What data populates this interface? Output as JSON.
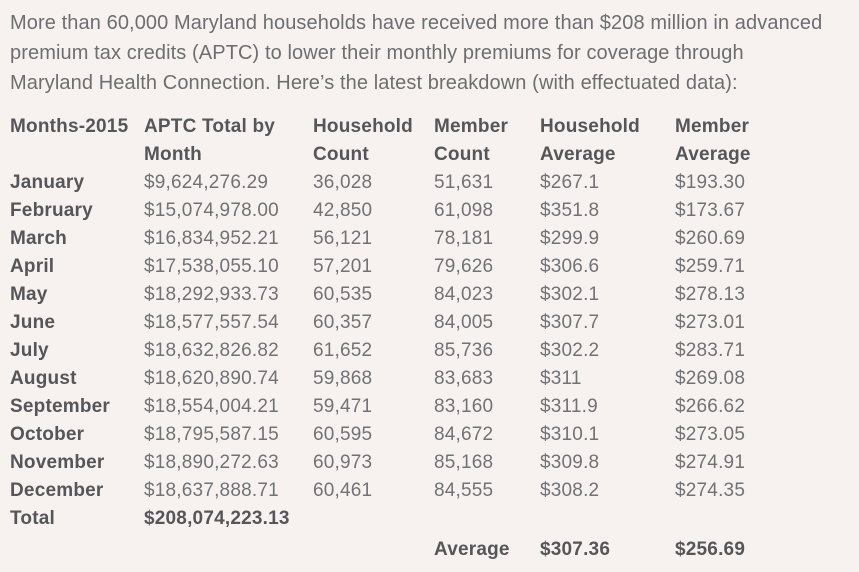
{
  "colors": {
    "background": "#f7f2f0",
    "heading_text": "#55565a",
    "body_text": "#6d6e70",
    "value_text": "#717276"
  },
  "intro": {
    "text": "More than 60,000 Maryland households have received more than $208 million in advanced\npremium tax credits (APTC) to lower their monthly premiums for coverage through\nMaryland Health Connection. Here’s the latest breakdown (with effectuated data):"
  },
  "table": {
    "headers": [
      "Months-2015",
      "APTC Total by Month",
      "Household Count",
      "Member Count",
      "Household Average",
      "Member Average"
    ],
    "rows": [
      [
        "January",
        "$9,624,276.29",
        "36,028",
        "51,631",
        "$267.1",
        "$193.30"
      ],
      [
        "February",
        "$15,074,978.00",
        "42,850",
        "61,098",
        "$351.8",
        "$173.67"
      ],
      [
        "March",
        "$16,834,952.21",
        "56,121",
        "78,181",
        "$299.9",
        "$260.69"
      ],
      [
        "April",
        "$17,538,055.10",
        "57,201",
        "79,626",
        "$306.6",
        "$259.71"
      ],
      [
        "May",
        "$18,292,933.73",
        "60,535",
        "84,023",
        "$302.1",
        "$278.13"
      ],
      [
        "June",
        "$18,577,557.54",
        "60,357",
        "84,005",
        "$307.7",
        "$273.01"
      ],
      [
        "July",
        "$18,632,826.82",
        "61,652",
        "85,736",
        "$302.2",
        "$283.71"
      ],
      [
        "August",
        "$18,620,890.74",
        "59,868",
        "83,683",
        "$311",
        "$269.08"
      ],
      [
        "September",
        "$18,554,004.21",
        "59,471",
        "83,160",
        "$311.9",
        "$266.62"
      ],
      [
        "October",
        "$18,795,587.15",
        "60,595",
        "84,672",
        "$310.1",
        "$273.05"
      ],
      [
        "November",
        "$18,890,272.63",
        "60,973",
        "85,168",
        "$309.8",
        "$274.91"
      ],
      [
        "December",
        "$18,637,888.71",
        "60,461",
        "84,555",
        "$308.2",
        "$274.35"
      ]
    ],
    "total_row": [
      "Total",
      "$208,074,223.13",
      "",
      "",
      "",
      ""
    ],
    "average_row": [
      "",
      "",
      "",
      "Average",
      "$307.36",
      "$256.69"
    ]
  }
}
